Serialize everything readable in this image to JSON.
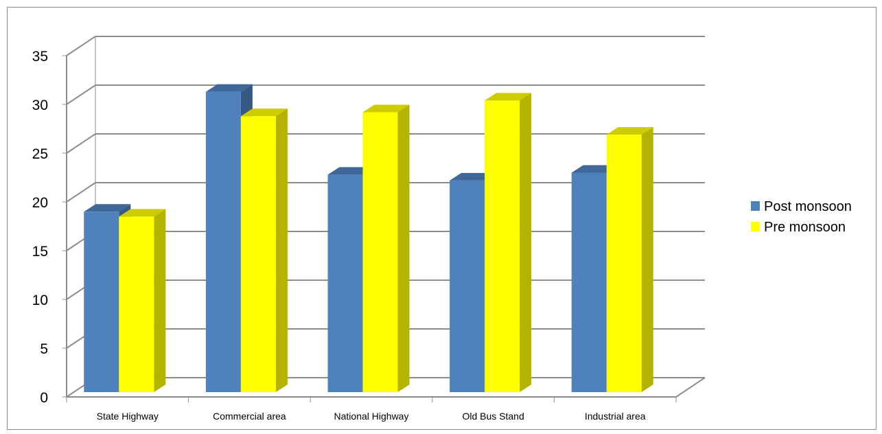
{
  "chart_data": {
    "type": "bar",
    "title": "",
    "xlabel": "",
    "ylabel": "",
    "categories": [
      "State Highway",
      "Commercial area",
      "National Highway",
      "Old Bus Stand",
      "Industrial area"
    ],
    "series": [
      {
        "name": "Post monsoon",
        "values": [
          18.5,
          30.8,
          22.3,
          21.7,
          22.5
        ],
        "color": "#4f81bd"
      },
      {
        "name": "Pre monsoon",
        "values": [
          18.0,
          28.3,
          28.7,
          29.9,
          26.4
        ],
        "color": "#ffff00"
      }
    ],
    "ylim": [
      0,
      35
    ],
    "yticks": [
      0,
      5,
      10,
      15,
      20,
      25,
      30,
      35
    ],
    "ytick_labels": [
      "0",
      "5",
      "10",
      "15",
      "20",
      "25",
      "30",
      "35"
    ],
    "grid": true,
    "style": "3d-clustered-column",
    "legend": "right"
  }
}
